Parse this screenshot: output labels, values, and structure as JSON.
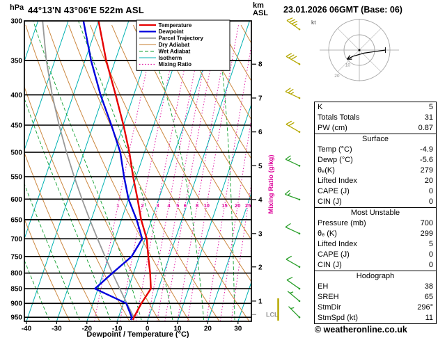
{
  "header": {
    "pressure_unit": "hPa",
    "station": "44°13'N 43°06'E 522m ASL",
    "datetime": "23.01.2026 06GMT (Base: 06)",
    "altitude_unit_line1": "km",
    "altitude_unit_line2": "ASL"
  },
  "chart_data": {
    "type": "skewt-sounding",
    "pressure_axis": {
      "unit": "hPa",
      "top": 300,
      "bottom": 965,
      "ticks": [
        300,
        350,
        400,
        450,
        500,
        550,
        600,
        650,
        700,
        750,
        800,
        850,
        900,
        950
      ]
    },
    "temp_axis": {
      "label": "Dewpoint / Temperature (°C)",
      "ticks": [
        -40,
        -30,
        -20,
        -10,
        0,
        10,
        20,
        30
      ]
    },
    "km_axis": {
      "unit": "km ASL",
      "ticks": [
        {
          "km": 1,
          "p": 892
        },
        {
          "km": 2,
          "p": 781
        },
        {
          "km": 3,
          "p": 686
        },
        {
          "km": 4,
          "p": 601
        },
        {
          "km": 5,
          "p": 527
        },
        {
          "km": 6,
          "p": 462
        },
        {
          "km": 7,
          "p": 405
        },
        {
          "km": 8,
          "p": 355
        }
      ],
      "lcl": {
        "label": "LCL",
        "p": 940
      }
    },
    "mixing_ratio": {
      "axis_label": "Mixing Ratio (g/kg)",
      "values": [
        1,
        2,
        3,
        4,
        5,
        6,
        8,
        10,
        15,
        20,
        25
      ],
      "label_p": 615
    },
    "isotherm_step": 10,
    "dry_adiabats": {
      "start": 250,
      "end": 400,
      "step": 10
    },
    "wet_adiabats": {
      "start": -40,
      "end": 40,
      "step": 10
    },
    "colors": {
      "temperature": "#e60000",
      "dewpoint": "#0000dd",
      "parcel": "#999999",
      "dry_adiabat": "#cc8840",
      "wet_adiabat": "#11a030",
      "isotherm": "#00b2b2",
      "mixing_ratio": "#dd0099",
      "isobar": "#000000",
      "barb_low": "#2ca02c",
      "barb_high": "#b5a800"
    },
    "legend": [
      {
        "label": "Temperature",
        "color": "#e60000",
        "width": 2.2
      },
      {
        "label": "Dewpoint",
        "color": "#0000dd",
        "width": 2.2
      },
      {
        "label": "Parcel Trajectory",
        "color": "#999999",
        "width": 1.8
      },
      {
        "label": "Dry Adiabat",
        "color": "#cc8840",
        "width": 1.1
      },
      {
        "label": "Wet Adiabat",
        "color": "#11a030",
        "width": 1.1,
        "dash": "5 3"
      },
      {
        "label": "Isotherm",
        "color": "#00b2b2",
        "width": 1.1
      },
      {
        "label": "Mixing Ratio",
        "color": "#dd0099",
        "width": 1.1,
        "dash": "1.5 2.6"
      }
    ],
    "series": {
      "temperature": [
        [
          960,
          -4.9
        ],
        [
          950,
          -4.9
        ],
        [
          900,
          -4.0
        ],
        [
          850,
          -2.5
        ],
        [
          800,
          -4.5
        ],
        [
          750,
          -7.0
        ],
        [
          700,
          -9.5
        ],
        [
          650,
          -13.5
        ],
        [
          600,
          -17.0
        ],
        [
          550,
          -21.0
        ],
        [
          500,
          -25.0
        ],
        [
          450,
          -30.0
        ],
        [
          400,
          -36.0
        ],
        [
          350,
          -43.0
        ],
        [
          300,
          -50.0
        ]
      ],
      "dewpoint": [
        [
          960,
          -5.6
        ],
        [
          950,
          -5.6
        ],
        [
          900,
          -9.0
        ],
        [
          850,
          -21.0
        ],
        [
          800,
          -17.0
        ],
        [
          750,
          -12.5
        ],
        [
          700,
          -11.0
        ],
        [
          650,
          -15.0
        ],
        [
          600,
          -20.0
        ],
        [
          550,
          -24.0
        ],
        [
          500,
          -28.0
        ],
        [
          450,
          -34.0
        ],
        [
          400,
          -41.0
        ],
        [
          350,
          -48.0
        ],
        [
          300,
          -55.0
        ]
      ],
      "parcel": [
        [
          960,
          -4.8
        ],
        [
          950,
          -4.9
        ],
        [
          900,
          -8.8
        ],
        [
          850,
          -12.8
        ],
        [
          800,
          -17.0
        ],
        [
          750,
          -21.3
        ],
        [
          700,
          -25.8
        ],
        [
          650,
          -30.5
        ],
        [
          600,
          -35.4
        ],
        [
          550,
          -40.5
        ],
        [
          500,
          -45.8
        ],
        [
          450,
          -51.3
        ],
        [
          400,
          -57.0
        ],
        [
          350,
          -62.8
        ],
        [
          300,
          -68.5
        ]
      ]
    },
    "wind_barbs": [
      {
        "p": 950,
        "dir": 315,
        "spd": 5,
        "level": "low"
      },
      {
        "p": 892,
        "dir": 310,
        "spd": 5,
        "level": "low"
      },
      {
        "p": 850,
        "dir": 305,
        "spd": 10,
        "level": "low"
      },
      {
        "p": 781,
        "dir": 300,
        "spd": 10,
        "level": "low"
      },
      {
        "p": 686,
        "dir": 295,
        "spd": 10,
        "level": "low"
      },
      {
        "p": 601,
        "dir": 290,
        "spd": 15,
        "level": "low"
      },
      {
        "p": 527,
        "dir": 295,
        "spd": 15,
        "level": "low"
      },
      {
        "p": 462,
        "dir": 300,
        "spd": 20,
        "level": "high"
      },
      {
        "p": 405,
        "dir": 295,
        "spd": 25,
        "level": "high"
      },
      {
        "p": 355,
        "dir": 300,
        "spd": 30,
        "level": "high"
      },
      {
        "p": 310,
        "dir": 305,
        "spd": 35,
        "level": "high"
      }
    ]
  },
  "hodograph": {
    "unit_label": "kt",
    "rings": [
      10,
      20
    ],
    "ring_labels": [
      "10",
      "20"
    ],
    "trace": [
      [
        17,
        0
      ],
      [
        10,
        -1
      ],
      [
        3,
        -2
      ],
      [
        -4,
        -4
      ],
      [
        -8,
        -6
      ]
    ]
  },
  "stats": {
    "indices": [
      {
        "label": "K",
        "value": "5"
      },
      {
        "label": "Totals Totals",
        "value": "31"
      },
      {
        "label": "PW (cm)",
        "value": "0.87"
      }
    ],
    "surface": {
      "title": "Surface",
      "rows": [
        {
          "label": "Temp (°C)",
          "value": "-4.9"
        },
        {
          "label": "Dewp (°C)",
          "value": "-5.6"
        },
        {
          "label": "θₑ(K)",
          "value": "279"
        },
        {
          "label": "Lifted Index",
          "value": "20"
        },
        {
          "label": "CAPE (J)",
          "value": "0"
        },
        {
          "label": "CIN (J)",
          "value": "0"
        }
      ]
    },
    "most_unstable": {
      "title": "Most Unstable",
      "rows": [
        {
          "label": "Pressure (mb)",
          "value": "700"
        },
        {
          "label": "θₑ (K)",
          "value": "299"
        },
        {
          "label": "Lifted Index",
          "value": "5"
        },
        {
          "label": "CAPE (J)",
          "value": "0"
        },
        {
          "label": "CIN (J)",
          "value": "0"
        }
      ]
    },
    "hodograph_box": {
      "title": "Hodograph",
      "rows": [
        {
          "label": "EH",
          "value": "38"
        },
        {
          "label": "SREH",
          "value": "65"
        },
        {
          "label": "StmDir",
          "value": "296°"
        },
        {
          "label": "StmSpd (kt)",
          "value": "11"
        }
      ]
    }
  },
  "footer": {
    "copyright": "© weatheronline.co.uk"
  }
}
